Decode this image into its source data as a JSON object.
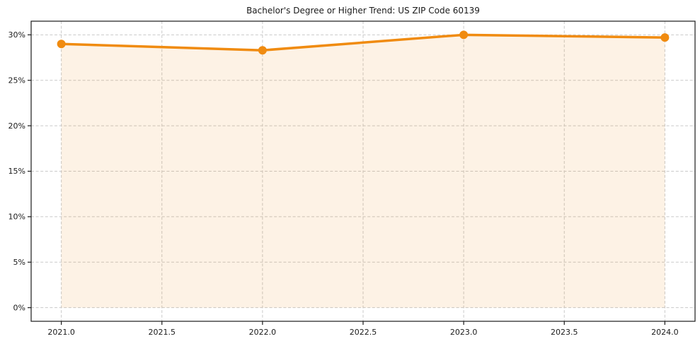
{
  "figure": {
    "background": "#ffffff"
  },
  "chart_data": {
    "type": "area",
    "title": "Bachelor's Degree or Higher Trend: US ZIP Code 60139",
    "x": [
      2021,
      2022,
      2023,
      2024
    ],
    "values": [
      29.0,
      28.3,
      30.0,
      29.7
    ],
    "xlabel": "",
    "ylabel": "",
    "xlim": [
      2020.85,
      2024.15
    ],
    "ylim": [
      -1.5,
      31.5
    ],
    "x_ticks": [
      2021.0,
      2021.5,
      2022.0,
      2022.5,
      2023.0,
      2023.5,
      2024.0
    ],
    "x_tick_labels": [
      "2021.0",
      "2021.5",
      "2022.0",
      "2022.5",
      "2023.0",
      "2023.5",
      "2024.0"
    ],
    "y_ticks": [
      0,
      5,
      10,
      15,
      20,
      25,
      30
    ],
    "y_tick_labels": [
      "0%",
      "5%",
      "10%",
      "15%",
      "20%",
      "25%",
      "30%"
    ],
    "grid": true,
    "legend": "none",
    "line_color": "#f08b10",
    "marker_color": "#f08b10",
    "fill_color": "#f08b10",
    "fill_opacity": 0.11,
    "grid_color": "#c9c9c9",
    "axis_color": "#1a1a1a",
    "tick_label_color": "#1a1a1a",
    "line_width": 3.5,
    "marker_radius": 6
  }
}
